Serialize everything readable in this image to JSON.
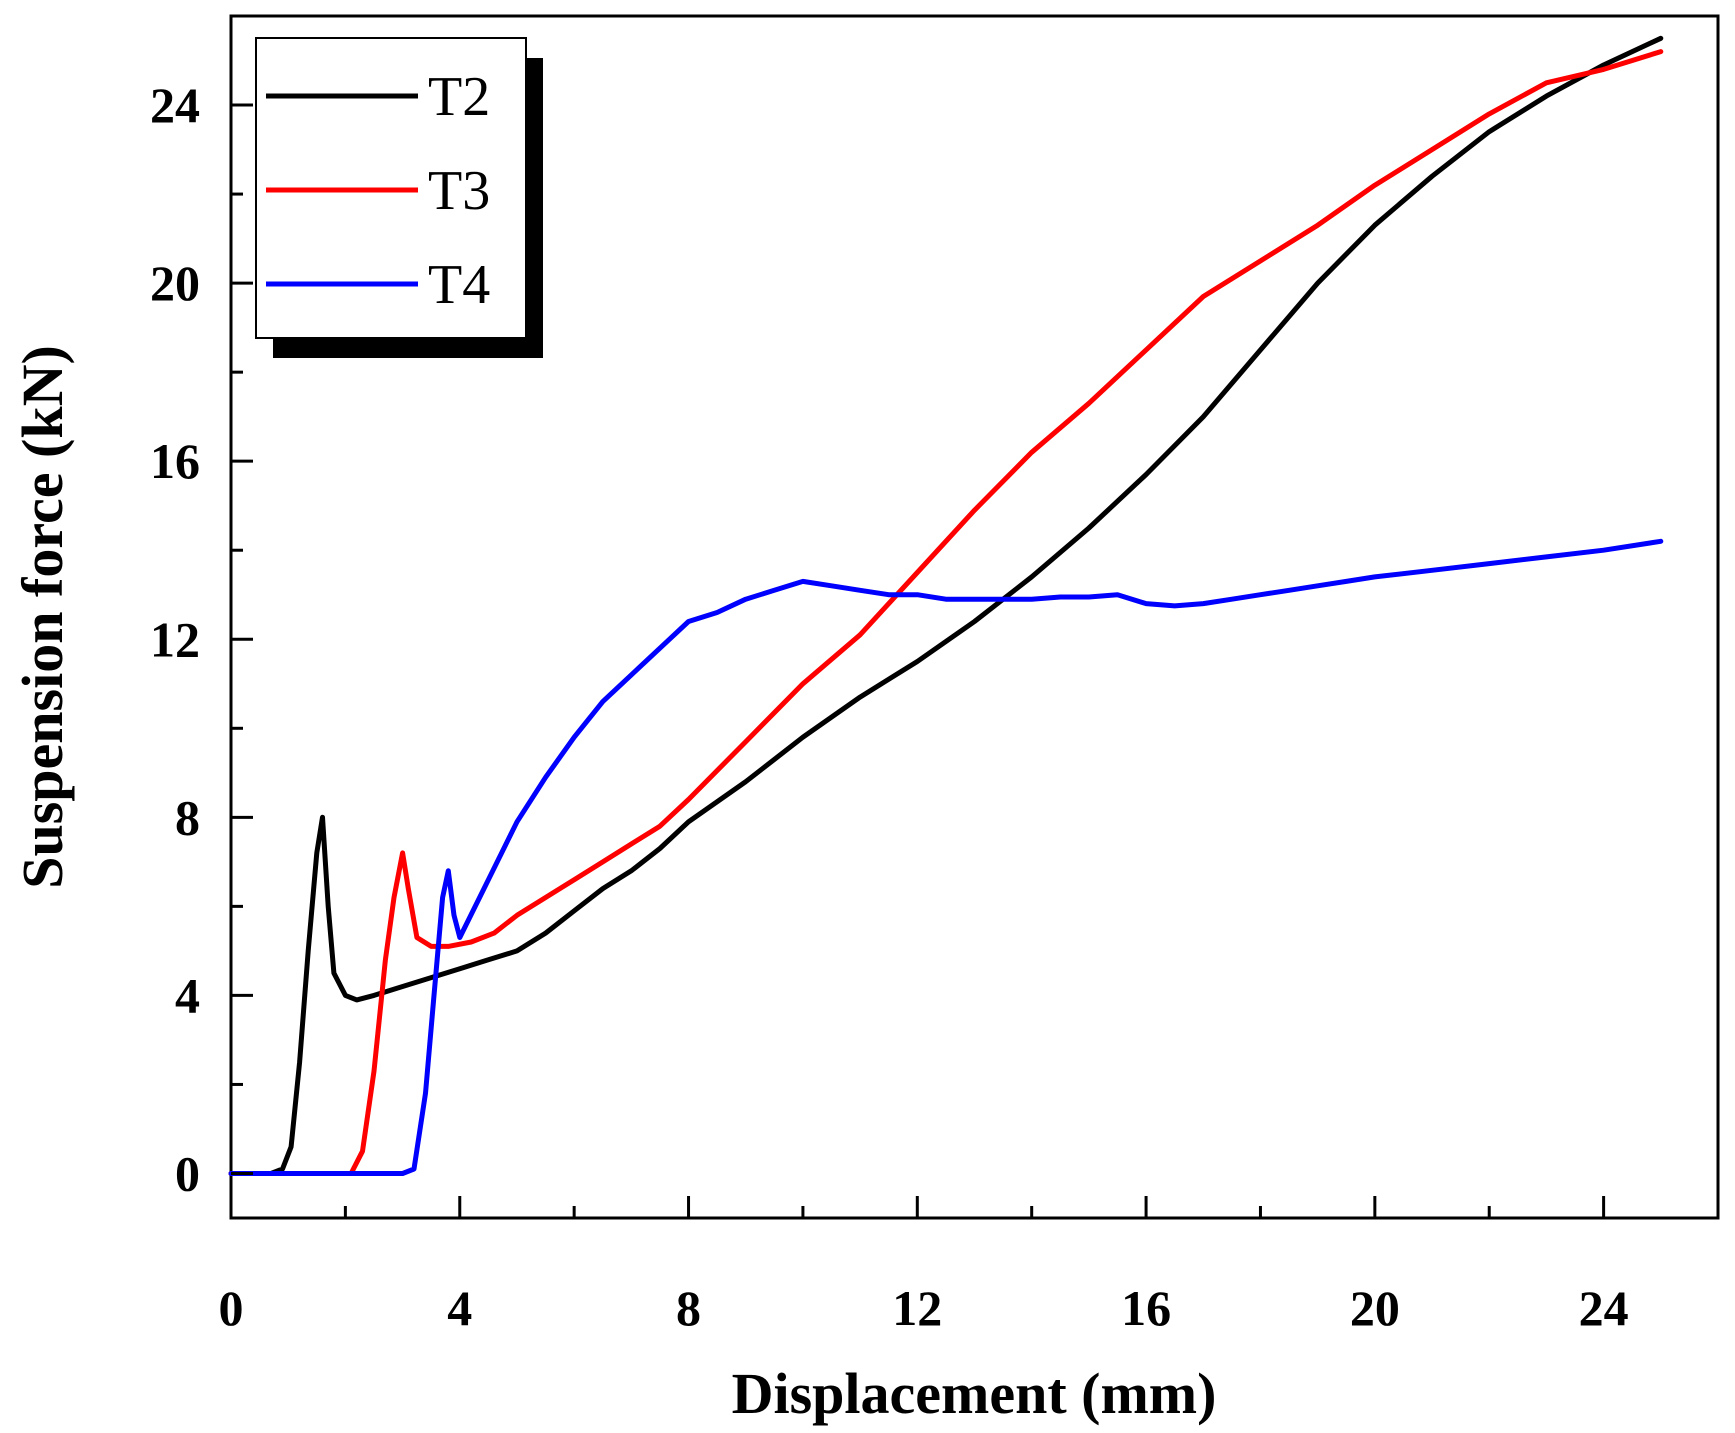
{
  "chart_data": {
    "type": "line",
    "title": "",
    "xlabel": "Displacement (mm)",
    "ylabel": "Suspension force (kN)",
    "xlim": [
      0,
      26
    ],
    "ylim": [
      -1,
      26
    ],
    "xticks": [
      0,
      4,
      8,
      12,
      16,
      20,
      24
    ],
    "yticks": [
      0,
      4,
      8,
      12,
      16,
      20,
      24
    ],
    "xtick_labels": [
      "0",
      "4",
      "8",
      "12",
      "16",
      "20",
      "24"
    ],
    "ytick_labels": [
      "0",
      "4",
      "8",
      "12",
      "16",
      "20",
      "24"
    ],
    "grid": false,
    "legend_position": "top-left",
    "series": [
      {
        "name": "T2",
        "color": "#000000",
        "x": [
          0,
          0.7,
          0.9,
          1.05,
          1.2,
          1.35,
          1.5,
          1.6,
          1.7,
          1.8,
          2.0,
          2.2,
          2.5,
          3.0,
          3.5,
          4.0,
          4.5,
          5.0,
          5.5,
          6.0,
          6.5,
          7.0,
          7.5,
          8.0,
          9.0,
          10.0,
          11.0,
          12.0,
          13.0,
          14.0,
          15.0,
          16.0,
          17.0,
          18.0,
          19.0,
          20.0,
          21.0,
          22.0,
          23.0,
          24.0,
          25.0
        ],
        "y": [
          0,
          0,
          0.1,
          0.6,
          2.5,
          5.0,
          7.2,
          8.0,
          6.0,
          4.5,
          4.0,
          3.9,
          4.0,
          4.2,
          4.4,
          4.6,
          4.8,
          5.0,
          5.4,
          5.9,
          6.4,
          6.8,
          7.3,
          7.9,
          8.8,
          9.8,
          10.7,
          11.5,
          12.4,
          13.4,
          14.5,
          15.7,
          17.0,
          18.5,
          20.0,
          21.3,
          22.4,
          23.4,
          24.2,
          24.9,
          25.5
        ]
      },
      {
        "name": "T3",
        "color": "#ff0000",
        "x": [
          0,
          2.1,
          2.3,
          2.5,
          2.7,
          2.85,
          3.0,
          3.1,
          3.25,
          3.5,
          3.8,
          4.2,
          4.6,
          5.0,
          5.5,
          6.0,
          6.5,
          7.0,
          7.5,
          8.0,
          9.0,
          10.0,
          11.0,
          12.0,
          13.0,
          14.0,
          15.0,
          16.0,
          17.0,
          18.0,
          19.0,
          20.0,
          21.0,
          22.0,
          23.0,
          24.0,
          25.0
        ],
        "y": [
          0,
          0,
          0.5,
          2.3,
          4.8,
          6.2,
          7.2,
          6.4,
          5.3,
          5.1,
          5.1,
          5.2,
          5.4,
          5.8,
          6.2,
          6.6,
          7.0,
          7.4,
          7.8,
          8.4,
          9.7,
          11.0,
          12.1,
          13.5,
          14.9,
          16.2,
          17.3,
          18.5,
          19.7,
          20.5,
          21.3,
          22.2,
          23.0,
          23.8,
          24.5,
          24.8,
          25.2
        ]
      },
      {
        "name": "T4",
        "color": "#0000ff",
        "x": [
          0,
          3.0,
          3.2,
          3.4,
          3.55,
          3.7,
          3.8,
          3.9,
          4.0,
          4.5,
          5.0,
          5.5,
          6.0,
          6.5,
          7.0,
          7.5,
          8.0,
          8.5,
          9.0,
          9.5,
          10.0,
          10.5,
          11.0,
          11.5,
          12.0,
          12.5,
          13.0,
          13.5,
          14.0,
          14.5,
          15.0,
          15.5,
          16.0,
          16.5,
          17.0,
          17.5,
          18.0,
          18.5,
          19.0,
          19.5,
          20.0,
          21.0,
          22.0,
          23.0,
          24.0,
          25.0
        ],
        "y": [
          0,
          0,
          0.1,
          1.8,
          4.0,
          6.2,
          6.8,
          5.8,
          5.3,
          6.6,
          7.9,
          8.9,
          9.8,
          10.6,
          11.2,
          11.8,
          12.4,
          12.6,
          12.9,
          13.1,
          13.3,
          13.2,
          13.1,
          13.0,
          13.0,
          12.9,
          12.9,
          12.9,
          12.9,
          12.95,
          12.95,
          13.0,
          12.8,
          12.75,
          12.8,
          12.9,
          13.0,
          13.1,
          13.2,
          13.3,
          13.4,
          13.55,
          13.7,
          13.85,
          14.0,
          14.2
        ]
      }
    ]
  }
}
